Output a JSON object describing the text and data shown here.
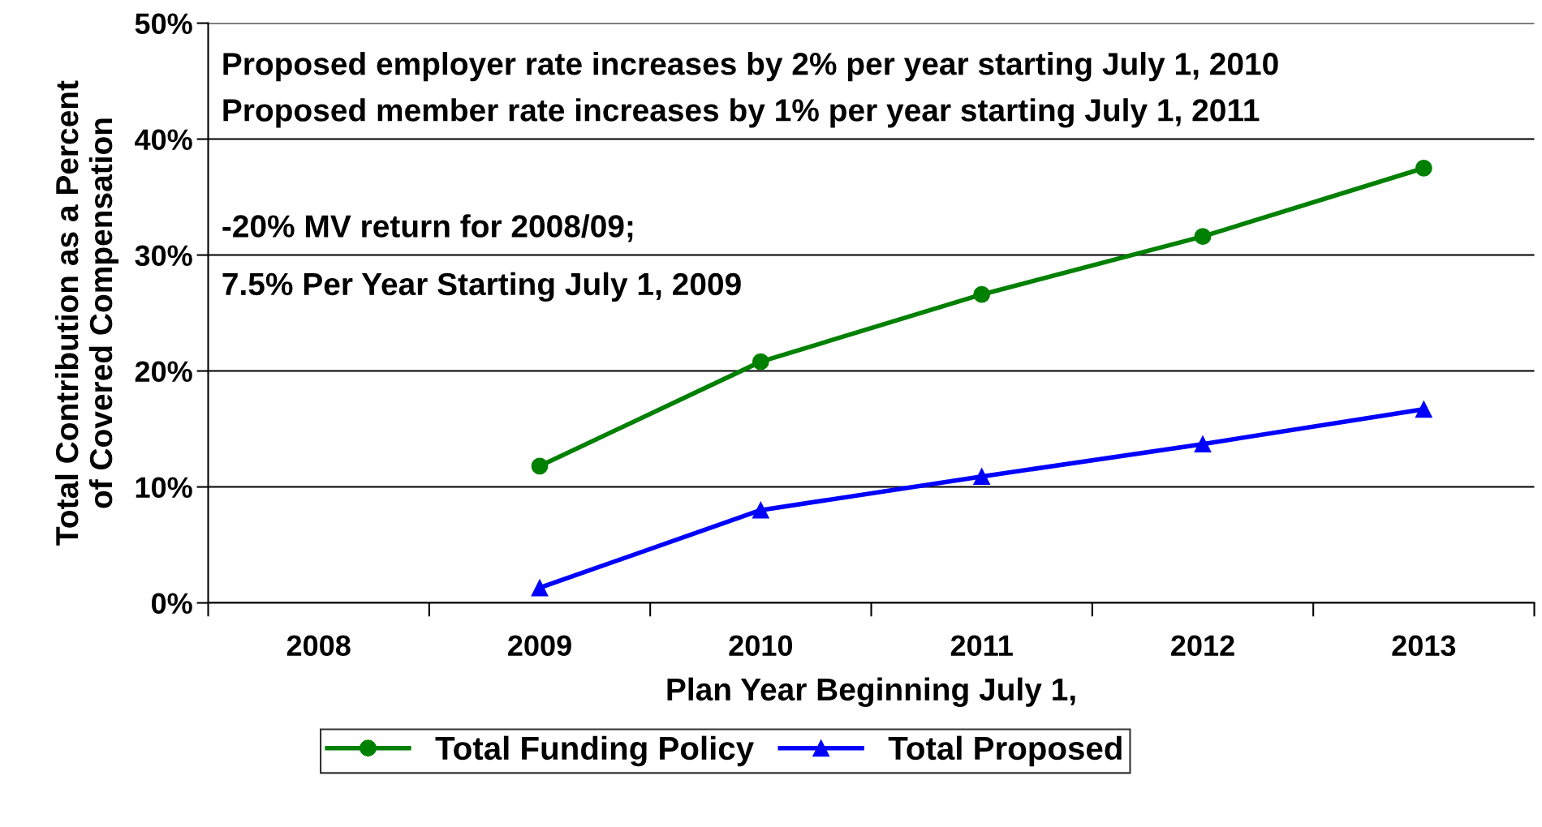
{
  "chart_data": {
    "type": "line",
    "xlabel": "Plan Year Beginning July 1,",
    "ylabel": "Total Contribution as a Percent\nof Covered Compensation",
    "categories": [
      "2008",
      "2009",
      "2010",
      "2011",
      "2012",
      "2013"
    ],
    "series": [
      {
        "name": "Total Funding Policy",
        "color": "#008000",
        "marker": "circle",
        "values": [
          null,
          11.8,
          20.8,
          26.6,
          31.6,
          37.5
        ]
      },
      {
        "name": "Total Proposed",
        "color": "#0000ff",
        "marker": "triangle",
        "values": [
          null,
          1.3,
          8.0,
          10.9,
          13.7,
          16.7
        ]
      }
    ],
    "ylim": [
      0,
      50
    ],
    "yticks": [
      {
        "value": 0,
        "label": "0%"
      },
      {
        "value": 10,
        "label": "10%"
      },
      {
        "value": 20,
        "label": "20%"
      },
      {
        "value": 30,
        "label": "30%"
      },
      {
        "value": 40,
        "label": "40%"
      },
      {
        "value": 50,
        "label": "50%"
      }
    ],
    "grid": "y",
    "legend": "bottom",
    "line_style": "solid",
    "annotations": [
      "Proposed employer rate increases by 2% per year starting July 1, 2010",
      "Proposed member rate increases by 1% per year starting July 1, 2011",
      "-20% MV return for 2008/09;",
      "7.5% Per Year Starting July 1, 2009"
    ]
  }
}
